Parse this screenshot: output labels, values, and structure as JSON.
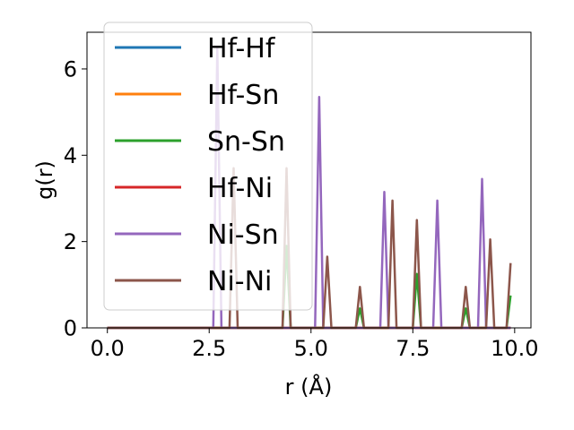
{
  "chart_data": {
    "type": "line",
    "xlabel": "r (Å)",
    "ylabel": "g(r)",
    "xlim": [
      -0.5,
      10.4
    ],
    "ylim": [
      0,
      6.85
    ],
    "xticks": [
      0.0,
      2.5,
      5.0,
      7.5,
      10.0
    ],
    "xtick_labels": [
      "0.0",
      "2.5",
      "5.0",
      "7.5",
      "10.0"
    ],
    "yticks": [
      0,
      2,
      4,
      6
    ],
    "ytick_labels": [
      "0",
      "2",
      "4",
      "6"
    ],
    "grid": false,
    "legend_position": "upper-left",
    "series": [
      {
        "name": "Hf-Hf",
        "color": "#1f77b4",
        "x": [
          0.0,
          9.9
        ],
        "y": [
          0.0,
          0.0
        ]
      },
      {
        "name": "Hf-Sn",
        "color": "#ff7f0e",
        "x": [
          0.0,
          9.9
        ],
        "y": [
          0.0,
          0.0
        ]
      },
      {
        "name": "Sn-Sn",
        "color": "#2ca02c",
        "x": [
          0.0,
          4.3,
          4.4,
          4.5,
          6.1,
          6.2,
          6.3,
          7.5,
          7.6,
          7.7,
          8.7,
          8.8,
          8.9,
          9.8,
          9.9
        ],
        "y": [
          0.0,
          0.0,
          1.9,
          0.0,
          0.0,
          0.45,
          0.0,
          0.0,
          1.25,
          0.0,
          0.0,
          0.45,
          0.0,
          0.0,
          0.75
        ]
      },
      {
        "name": "Hf-Ni",
        "color": "#d62728",
        "x": [
          0.0,
          9.9
        ],
        "y": [
          0.0,
          0.0
        ]
      },
      {
        "name": "Ni-Sn",
        "color": "#9467bd",
        "x": [
          0.0,
          2.6,
          2.7,
          2.8,
          5.1,
          5.2,
          5.3,
          6.7,
          6.8,
          6.9,
          8.0,
          8.1,
          8.2,
          9.1,
          9.2,
          9.3,
          9.9
        ],
        "y": [
          0.0,
          0.0,
          6.5,
          0.0,
          0.0,
          5.35,
          0.0,
          0.0,
          3.15,
          0.0,
          0.0,
          2.95,
          0.0,
          0.0,
          3.45,
          0.0,
          0.0
        ]
      },
      {
        "name": "Ni-Ni",
        "color": "#8c564b",
        "x": [
          0.0,
          3.0,
          3.1,
          3.2,
          4.3,
          4.4,
          4.5,
          5.3,
          5.4,
          5.5,
          6.1,
          6.2,
          6.3,
          6.9,
          7.0,
          7.1,
          7.5,
          7.6,
          7.7,
          8.7,
          8.8,
          8.9,
          9.3,
          9.4,
          9.5,
          9.8,
          9.9
        ],
        "y": [
          0.0,
          0.0,
          3.7,
          0.0,
          0.0,
          3.7,
          0.0,
          0.0,
          1.65,
          0.0,
          0.0,
          0.95,
          0.0,
          0.0,
          2.95,
          0.0,
          0.0,
          2.5,
          0.0,
          0.0,
          0.95,
          0.0,
          0.0,
          2.05,
          0.0,
          0.0,
          1.5
        ]
      }
    ]
  }
}
